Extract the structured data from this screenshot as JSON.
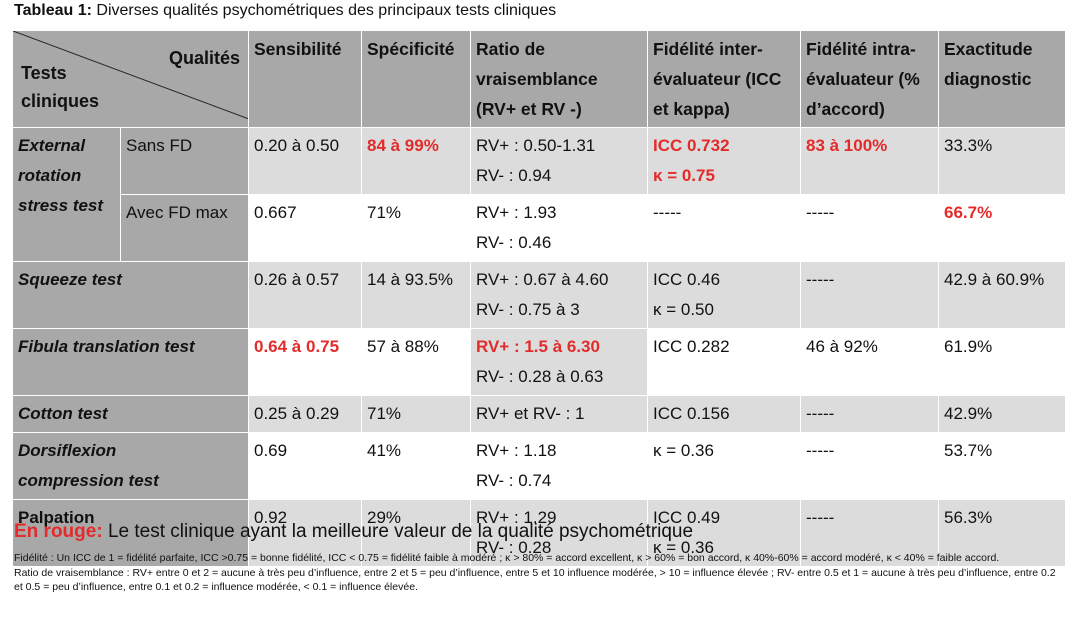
{
  "caption": {
    "label": "Tableau 1:",
    "text": " Diverses qualités psychométriques des principaux tests cliniques"
  },
  "table": {
    "corner": {
      "top": "Qualités",
      "bottom_line1": "Tests",
      "bottom_line2": "cliniques"
    },
    "headers": [
      "Sensibilité",
      "Spécificité",
      "Ratio de vraisemblance (RV+ et RV -)",
      "Fidélité inter-évaluateur (ICC et kappa)",
      "Fidélité intra-évaluateur (% d’accord)",
      "Exactitude diagnostic"
    ],
    "rows": {
      "ers": {
        "name_line1": "External",
        "name_line2": "rotation",
        "name_line3": "stress test",
        "sub1": {
          "label": "Sans FD",
          "sens": "0.20 à 0.50",
          "spec": "84 à 99%",
          "rv1": "RV+ : 0.50-1.31",
          "rv2": "RV- : 0.94",
          "inter1": "ICC 0.732",
          "inter2": "κ = 0.75",
          "intra": "83 à 100%",
          "acc": "33.3%"
        },
        "sub2": {
          "label": "Avec FD max",
          "sens": "0.667",
          "spec": "71%",
          "rv1": "RV+ : 1.93",
          "rv2": "RV- : 0.46",
          "inter": "-----",
          "intra": "-----",
          "acc": "66.7%"
        }
      },
      "squeeze": {
        "name": "Squeeze test",
        "sens": "0.26 à 0.57",
        "spec": "14 à 93.5%",
        "rv1": "RV+ : 0.67 à 4.60",
        "rv2": "RV- : 0.75 à 3",
        "inter1": "ICC 0.46",
        "inter2": "κ = 0.50",
        "intra": "-----",
        "acc": "42.9 à 60.9%"
      },
      "fibula": {
        "name": "Fibula translation test",
        "sens": "0.64 à 0.75",
        "spec": "57 à 88%",
        "rv1": "RV+ : 1.5 à 6.30",
        "rv2": "RV- : 0.28 à 0.63",
        "inter": "ICC 0.282",
        "intra": "46 à 92%",
        "acc": "61.9%"
      },
      "cotton": {
        "name": "Cotton test",
        "sens": "0.25 à 0.29",
        "spec": "71%",
        "rv": "RV+ et RV- : 1",
        "inter": "ICC 0.156",
        "intra": "-----",
        "acc": "42.9%"
      },
      "dorsi": {
        "name_line1": "Dorsiflexion",
        "name_line2": "compression test",
        "sens": "0.69",
        "spec": "41%",
        "rv1": "RV+ : 1.18",
        "rv2": "RV- : 0.74",
        "inter": "κ = 0.36",
        "intra": "-----",
        "acc": "53.7%"
      },
      "palp": {
        "name": "Palpation",
        "sens": "0.92",
        "spec": "29%",
        "rv1": "RV+ : 1.29",
        "rv2": "RV- : 0.28",
        "inter1": "ICC 0.49",
        "inter2": "κ = 0.36",
        "intra": "-----",
        "acc": "56.3%"
      }
    }
  },
  "legend": {
    "red_label": "En rouge:",
    "text": " Le test clinique ayant la meilleure valeur de la qualité psychométrique"
  },
  "notes": [
    "Fidélité : Un ICC de 1 = fidélité parfaite, ICC >0.75 = bonne fidélité, ICC < 0.75 = fidélité faible à modéré ; κ > 80% = accord excellent, κ > 60% = bon accord, κ 40%-60% = accord modéré, κ < 40% = faible accord.",
    "Ratio de vraisemblance : RV+ entre 0 et 2 = aucune à très peu d’influence, entre 2 et 5 = peu d’influence, entre 5 et 10 influence modérée, > 10 = influence élevée ; RV- entre 0.5 et 1 = aucune à très peu d’influence, entre 0.2 et 0.5 = peu d’influence, entre 0.1 et 0.2 = influence modérée, < 0.1 = influence élevée."
  ],
  "colors": {
    "header_gray": "#a8a8a8",
    "light_gray": "#dcdcdc",
    "highlight_red": "#e32b2b"
  }
}
